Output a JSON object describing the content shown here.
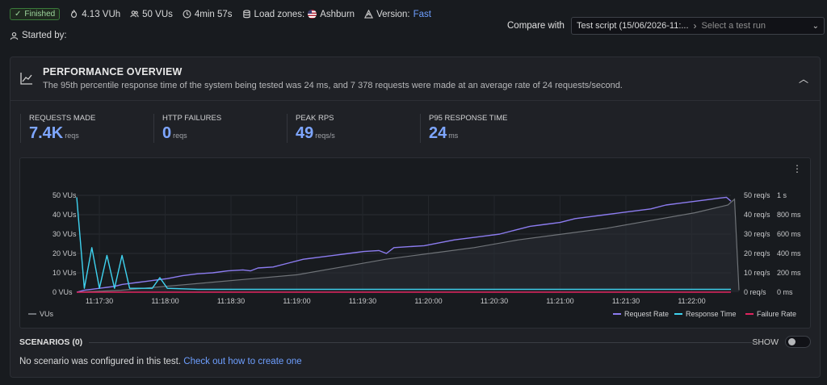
{
  "status": {
    "label": "Finished",
    "icon": "check-icon",
    "color": "#3a7a3a"
  },
  "meta": {
    "vuh": "4.13 VUh",
    "vus": "50 VUs",
    "duration": "4min 57s",
    "load_zones_label": "Load zones:",
    "load_zone": "Ashburn",
    "version_label": "Version:",
    "version": "Fast"
  },
  "started_by": "Started by:",
  "compare": {
    "label": "Compare with",
    "script": "Test script (15/06/2026-11:...",
    "placeholder": "Select a test run"
  },
  "overview": {
    "title": "PERFORMANCE OVERVIEW",
    "description": "The 95th percentile response time of the system being tested was 24 ms, and 7 378 requests were made at an average rate of 24 requests/second."
  },
  "stats": [
    {
      "label": "REQUESTS MADE",
      "value": "7.4K",
      "unit": "reqs"
    },
    {
      "label": "HTTP FAILURES",
      "value": "0",
      "unit": "reqs"
    },
    {
      "label": "PEAK RPS",
      "value": "49",
      "unit": "reqs/s"
    },
    {
      "label": "P95 RESPONSE TIME",
      "value": "24",
      "unit": "ms"
    }
  ],
  "chart_data": {
    "type": "line",
    "x_ticks": [
      "11:17:30",
      "11:18:00",
      "11:18:30",
      "11:19:00",
      "11:19:30",
      "11:20:00",
      "11:20:30",
      "11:21:00",
      "11:21:30",
      "11:22:00"
    ],
    "y_left": {
      "ticks": [
        "0 VUs",
        "10 VUs",
        "20 VUs",
        "30 VUs",
        "40 VUs",
        "50 VUs"
      ],
      "range": [
        0,
        50
      ]
    },
    "y_right_rps": {
      "ticks": [
        "0 req/s",
        "10 req/s",
        "20 req/s",
        "30 req/s",
        "40 req/s",
        "50 req/s"
      ],
      "range": [
        0,
        50
      ]
    },
    "y_right_time": {
      "ticks": [
        "0 ms",
        "200 ms",
        "400 ms",
        "600 ms",
        "800 ms",
        "1 s"
      ],
      "range": [
        0,
        1000
      ]
    },
    "x_range_seconds": [
      0,
      300
    ],
    "series": [
      {
        "name": "VUs",
        "color": "#6f7378",
        "axis": "vus",
        "points": [
          [
            0,
            0
          ],
          [
            20,
            1
          ],
          [
            40,
            3
          ],
          [
            60,
            5
          ],
          [
            80,
            7
          ],
          [
            100,
            9
          ],
          [
            120,
            13
          ],
          [
            140,
            17
          ],
          [
            160,
            20
          ],
          [
            180,
            23
          ],
          [
            200,
            27
          ],
          [
            220,
            30
          ],
          [
            240,
            33
          ],
          [
            260,
            37
          ],
          [
            280,
            41
          ],
          [
            295,
            45
          ],
          [
            298,
            48
          ],
          [
            300,
            1
          ]
        ]
      },
      {
        "name": "Request Rate",
        "color": "#8c7cf0",
        "axis": "rps",
        "points": [
          [
            0,
            0
          ],
          [
            5,
            1
          ],
          [
            10,
            1.5
          ],
          [
            15,
            2
          ],
          [
            20,
            2.5
          ],
          [
            25,
            3
          ],
          [
            30,
            4
          ],
          [
            35,
            4.5
          ],
          [
            40,
            5
          ],
          [
            45,
            5.5
          ],
          [
            50,
            6
          ],
          [
            60,
            7
          ],
          [
            70,
            8.5
          ],
          [
            80,
            9.5
          ],
          [
            90,
            10
          ],
          [
            100,
            11
          ],
          [
            110,
            11.5
          ],
          [
            115,
            11
          ],
          [
            120,
            12.5
          ],
          [
            130,
            13
          ],
          [
            140,
            15
          ],
          [
            150,
            17
          ],
          [
            160,
            18
          ],
          [
            170,
            19
          ],
          [
            180,
            20
          ],
          [
            190,
            21
          ],
          [
            200,
            21.5
          ],
          [
            205,
            20
          ],
          [
            210,
            23
          ],
          [
            220,
            23.5
          ],
          [
            230,
            24
          ],
          [
            240,
            25.5
          ],
          [
            250,
            27
          ],
          [
            260,
            28
          ],
          [
            270,
            29
          ],
          [
            280,
            30
          ],
          [
            290,
            32
          ],
          [
            300,
            34
          ],
          [
            310,
            35
          ],
          [
            320,
            36
          ],
          [
            330,
            38
          ],
          [
            340,
            39
          ],
          [
            350,
            40
          ],
          [
            360,
            41
          ],
          [
            370,
            42
          ],
          [
            380,
            43
          ],
          [
            390,
            45
          ],
          [
            400,
            46
          ],
          [
            410,
            47
          ],
          [
            420,
            48
          ],
          [
            425,
            48.5
          ],
          [
            430,
            49
          ],
          [
            433,
            47
          ]
        ]
      },
      {
        "name": "Response Time",
        "color": "#3fd3f0",
        "axis": "time",
        "points": [
          [
            0,
            980
          ],
          [
            5,
            40
          ],
          [
            10,
            460
          ],
          [
            15,
            40
          ],
          [
            20,
            380
          ],
          [
            25,
            40
          ],
          [
            30,
            380
          ],
          [
            35,
            40
          ],
          [
            40,
            40
          ],
          [
            50,
            40
          ],
          [
            55,
            150
          ],
          [
            60,
            40
          ],
          [
            80,
            30
          ],
          [
            120,
            30
          ],
          [
            200,
            30
          ],
          [
            300,
            30
          ],
          [
            433,
            30
          ]
        ]
      },
      {
        "name": "Failure Rate",
        "color": "#e0245e",
        "axis": "rps",
        "points": [
          [
            0,
            0
          ],
          [
            433,
            0
          ]
        ]
      }
    ],
    "legend_left": "VUs",
    "legend_right": [
      "Request Rate",
      "Response Time",
      "Failure Rate"
    ]
  },
  "scenarios": {
    "title": "SCENARIOS (0)",
    "show_label": "SHOW",
    "empty_text": "No scenario was configured in this test.",
    "link_text": "Check out how to create one"
  }
}
